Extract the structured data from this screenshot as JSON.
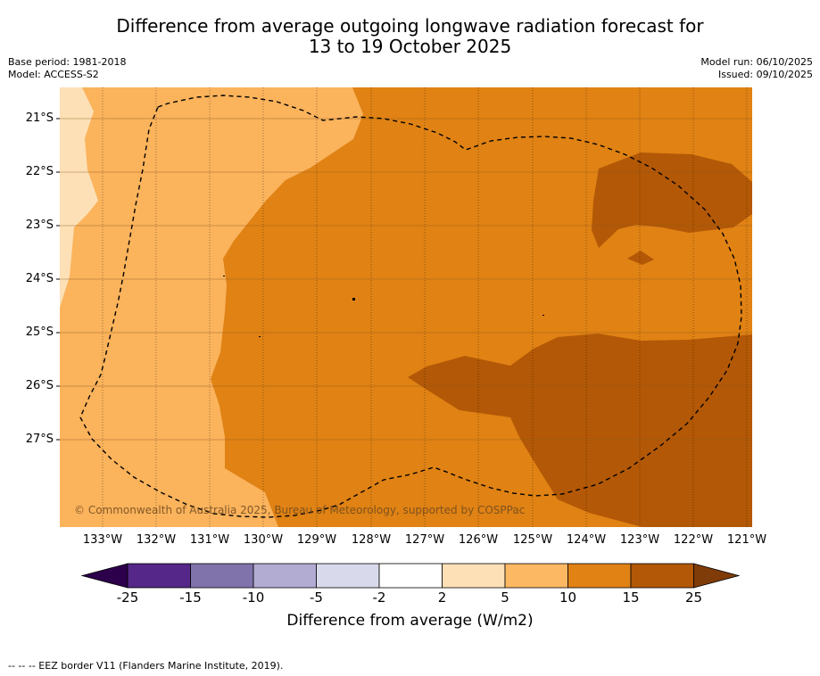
{
  "title": {
    "line1": "Difference from average outgoing longwave radiation forecast for",
    "line2": "13 to 19 October 2025"
  },
  "meta": {
    "base_period": "Base period: 1981-2018",
    "model": "Model: ACCESS-S2",
    "model_run": "Model run: 06/10/2025",
    "issued": "Issued: 09/10/2025"
  },
  "map": {
    "lat_labels": [
      "21°S",
      "22°S",
      "23°S",
      "24°S",
      "25°S",
      "26°S",
      "27°S"
    ],
    "lon_labels": [
      "133°W",
      "132°W",
      "131°W",
      "130°W",
      "129°W",
      "128°W",
      "127°W",
      "126°W",
      "125°W",
      "124°W",
      "123°W",
      "122°W",
      "121°W"
    ],
    "copyright": "© Commonwealth of Australia 2025, Bureau of Meteorology, supported by COSPPac",
    "colors": {
      "c2_5": "#fde0b6",
      "c5_10": "#fbb35c",
      "c10_15": "#e08214",
      "c15_25": "#b35806"
    }
  },
  "colorbar": {
    "ticks": [
      "-25",
      "-15",
      "-10",
      "-5",
      "-2",
      "2",
      "5",
      "10",
      "15",
      "25"
    ],
    "colors": [
      "#2d004b",
      "#542788",
      "#8073ac",
      "#b2abd2",
      "#d8daeb",
      "#ffffff",
      "#fee0b6",
      "#fdb863",
      "#e08214",
      "#b35806",
      "#7f3b08"
    ],
    "label": "Difference from average (W/m2)"
  },
  "footer": "--  --  -- EEZ border V11 (Flanders Marine Institute, 2019)."
}
